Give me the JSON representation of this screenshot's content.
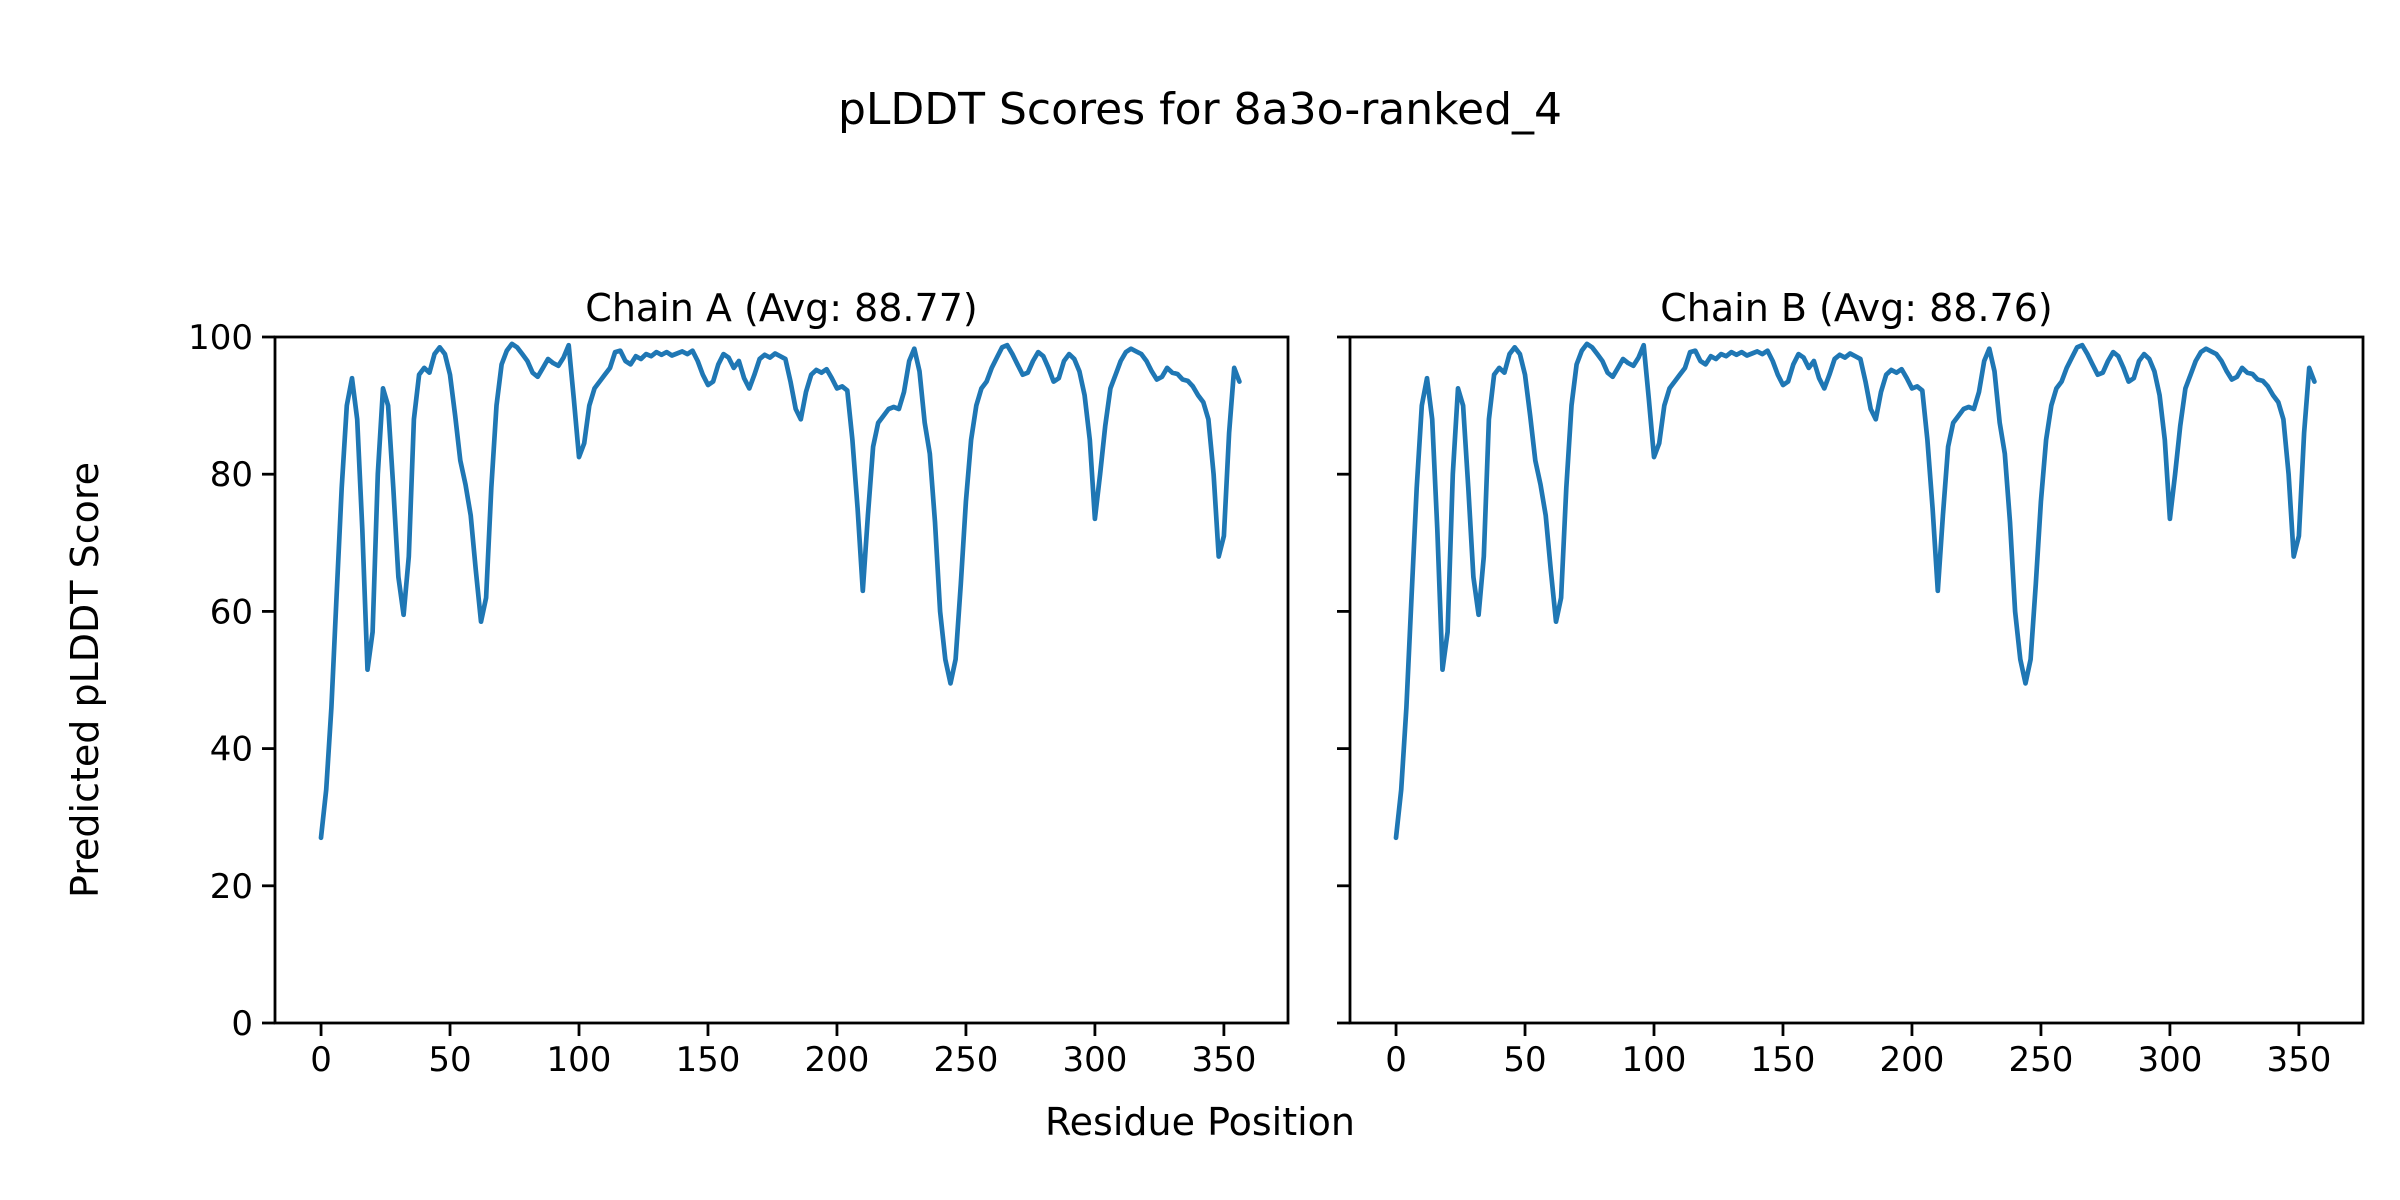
{
  "figure": {
    "title": "pLDDT Scores for 8a3o-ranked_4",
    "xlabel": "Residue Position",
    "ylabel": "Predicted pLDDT Score",
    "line_color": "#1f77b4",
    "background": "#ffffff",
    "text_color": "#000000"
  },
  "chart_data": [
    {
      "type": "line",
      "title": "Chain A (Avg: 88.77)",
      "avg": 88.77,
      "xlabel": "Residue Position",
      "ylabel": "Predicted pLDDT Score",
      "x_start": 0,
      "x_step": 2,
      "xlim": [
        -17.85,
        374.85
      ],
      "ylim": [
        0,
        100
      ],
      "x_ticks": [
        0,
        50,
        100,
        150,
        200,
        250,
        300,
        350
      ],
      "y_ticks": [
        0,
        20,
        40,
        60,
        80,
        100
      ],
      "grid": false,
      "legend": "none",
      "values": [
        27,
        34,
        46,
        62,
        78,
        90,
        94,
        88,
        72,
        51.5,
        57,
        80,
        92.5,
        90,
        78,
        65,
        59.5,
        68,
        88,
        94.5,
        95.5,
        94.8,
        97.5,
        98.5,
        97.5,
        94.5,
        88.5,
        82,
        78.5,
        74,
        66,
        58.5,
        62,
        78,
        90,
        96,
        98,
        99,
        98.5,
        97.5,
        96.5,
        94.8,
        94.2,
        95.5,
        96.8,
        96.2,
        95.8,
        97,
        98.8,
        91,
        82.5,
        84.5,
        90,
        92.5,
        93.5,
        94.5,
        95.5,
        97.8,
        98,
        96.5,
        96,
        97.2,
        96.8,
        97.5,
        97.2,
        97.8,
        97.4,
        97.8,
        97.3,
        97.6,
        97.9,
        97.5,
        98,
        96.5,
        94.5,
        93,
        93.5,
        96,
        97.5,
        97,
        95.5,
        96.5,
        94,
        92.5,
        94.5,
        96.8,
        97.4,
        97,
        97.6,
        97.2,
        96.8,
        93.5,
        89.5,
        88,
        92,
        94.5,
        95.2,
        94.8,
        95.3,
        94,
        92.5,
        92.8,
        92.2,
        85,
        75,
        63,
        74,
        84,
        87.5,
        88.5,
        89.5,
        89.8,
        89.5,
        92,
        96.5,
        98.3,
        95,
        87.5,
        83,
        73,
        60,
        53,
        49.5,
        53,
        64,
        76,
        85,
        90,
        92.5,
        93.5,
        95.5,
        97,
        98.5,
        98.8,
        97.5,
        96,
        94.5,
        94.8,
        96.5,
        97.8,
        97.2,
        95.5,
        93.5,
        94,
        96.5,
        97.5,
        96.8,
        95,
        91.5,
        85,
        73.5,
        80,
        87,
        92.5,
        94.5,
        96.5,
        97.8,
        98.3,
        97.9,
        97.5,
        96.5,
        95,
        93.8,
        94.2,
        95.5,
        94.8,
        94.6,
        93.8,
        93.6,
        92.8,
        91.5,
        90.5,
        88,
        80,
        68,
        71,
        86,
        95.5,
        93.5
      ]
    },
    {
      "type": "line",
      "title": "Chain B (Avg: 88.76)",
      "avg": 88.76,
      "xlabel": "Residue Position",
      "ylabel": "Predicted pLDDT Score",
      "x_start": 0,
      "x_step": 2,
      "xlim": [
        -17.85,
        374.85
      ],
      "ylim": [
        0,
        100
      ],
      "x_ticks": [
        0,
        50,
        100,
        150,
        200,
        250,
        300,
        350
      ],
      "y_ticks": [
        0,
        20,
        40,
        60,
        80,
        100
      ],
      "grid": false,
      "legend": "none",
      "values": [
        27,
        34,
        46,
        62,
        78,
        90,
        94,
        88,
        72,
        51.5,
        57,
        80,
        92.5,
        90,
        78,
        65,
        59.5,
        68,
        88,
        94.5,
        95.5,
        94.8,
        97.5,
        98.5,
        97.5,
        94.5,
        88.5,
        82,
        78.5,
        74,
        66,
        58.5,
        62,
        78,
        90,
        96,
        98,
        99,
        98.5,
        97.5,
        96.5,
        94.8,
        94.2,
        95.5,
        96.8,
        96.2,
        95.8,
        97,
        98.8,
        91,
        82.5,
        84.5,
        90,
        92.5,
        93.5,
        94.5,
        95.5,
        97.8,
        98,
        96.5,
        96,
        97.2,
        96.8,
        97.5,
        97.2,
        97.8,
        97.4,
        97.8,
        97.3,
        97.6,
        97.9,
        97.5,
        98,
        96.5,
        94.5,
        93,
        93.5,
        96,
        97.5,
        97,
        95.5,
        96.5,
        94,
        92.5,
        94.5,
        96.8,
        97.4,
        97,
        97.6,
        97.2,
        96.8,
        93.5,
        89.5,
        88,
        92,
        94.5,
        95.2,
        94.8,
        95.3,
        94,
        92.5,
        92.8,
        92.2,
        85,
        75,
        63,
        74,
        84,
        87.5,
        88.5,
        89.5,
        89.8,
        89.5,
        92,
        96.5,
        98.3,
        95,
        87.5,
        83,
        73,
        60,
        53,
        49.5,
        53,
        64,
        76,
        85,
        90,
        92.5,
        93.5,
        95.5,
        97,
        98.5,
        98.8,
        97.5,
        96,
        94.5,
        94.8,
        96.5,
        97.8,
        97.2,
        95.5,
        93.5,
        94,
        96.5,
        97.5,
        96.8,
        95,
        91.5,
        85,
        73.5,
        80,
        87,
        92.5,
        94.5,
        96.5,
        97.8,
        98.3,
        97.9,
        97.5,
        96.5,
        95,
        93.8,
        94.2,
        95.5,
        94.8,
        94.6,
        93.8,
        93.6,
        92.8,
        91.5,
        90.5,
        88,
        80,
        68,
        71,
        86,
        95.5,
        93.5
      ]
    }
  ]
}
